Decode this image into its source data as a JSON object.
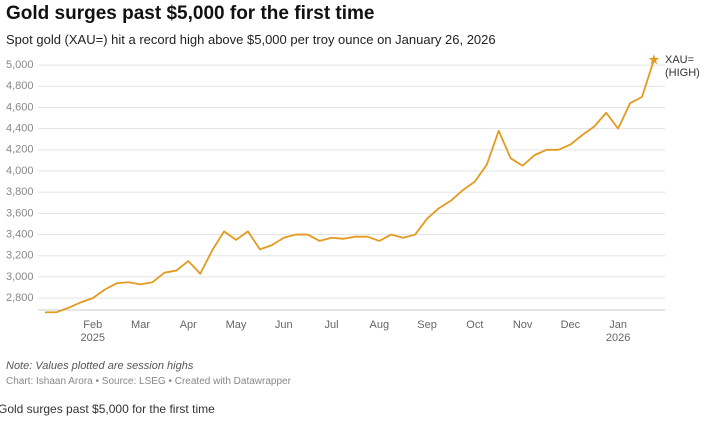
{
  "chart_data": {
    "type": "line",
    "title": "Gold surges past $5,000 for the first time",
    "subtitle": "Spot gold (XAU=) hit a record high above $5,000 per troy ounce on January 26, 2026",
    "note": "Note: Values plotted are session highs",
    "source": "Chart: Ishaan Arora • Source: LSEG • Created with Datawrapper",
    "caption": "Gold surges past $5,000 for the first time",
    "annotation": "XAU=\n(HIGH)",
    "categories": [
      null,
      null,
      null,
      null,
      "Feb\n2025",
      null,
      null,
      null,
      "Mar",
      null,
      null,
      null,
      "Apr",
      null,
      null,
      null,
      "May",
      null,
      null,
      null,
      "Jun",
      null,
      null,
      null,
      "Jul",
      null,
      null,
      null,
      "Aug",
      null,
      null,
      null,
      "Sep",
      null,
      null,
      null,
      "Oct",
      null,
      null,
      null,
      "Nov",
      null,
      null,
      null,
      "Dec",
      null,
      null,
      null,
      "Jan\n2026",
      null,
      null,
      null
    ],
    "series": [
      {
        "name": "XAU=",
        "color": "#e39a1f",
        "values": [
          2665,
          2668,
          2710,
          2760,
          2800,
          2880,
          2940,
          2950,
          2930,
          2950,
          3040,
          3060,
          3150,
          3030,
          3250,
          3430,
          3350,
          3430,
          3260,
          3300,
          3370,
          3400,
          3400,
          3340,
          3370,
          3360,
          3380,
          3380,
          3340,
          3400,
          3370,
          3400,
          3550,
          3650,
          3720,
          3820,
          3900,
          4060,
          4380,
          4120,
          4050,
          4150,
          4200,
          4200,
          4250,
          4340,
          4420,
          4550,
          4400,
          4640,
          4700,
          5050
        ]
      }
    ],
    "ylim": [
      2650,
      5100
    ],
    "yticks": [
      {
        "value": 2800,
        "label": "2,800"
      },
      {
        "value": 3000,
        "label": "3,000"
      },
      {
        "value": 3200,
        "label": "3,200"
      },
      {
        "value": 3400,
        "label": "3,400"
      },
      {
        "value": 3600,
        "label": "3,600"
      },
      {
        "value": 3800,
        "label": "3,800"
      },
      {
        "value": 4000,
        "label": "4,000"
      },
      {
        "value": 4200,
        "label": "4,200"
      },
      {
        "value": 4400,
        "label": "4,400"
      },
      {
        "value": 4600,
        "label": "4,600"
      },
      {
        "value": 4800,
        "label": "4,800"
      },
      {
        "value": 5000,
        "label": "5,000"
      }
    ],
    "grid": true
  }
}
